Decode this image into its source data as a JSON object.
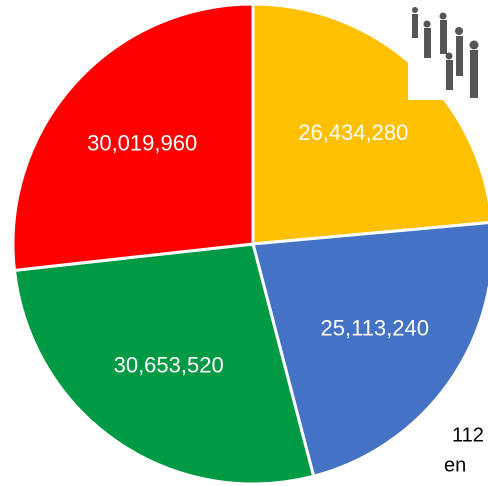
{
  "chart_data": {
    "type": "pie",
    "categories": [
      null,
      null,
      null,
      null
    ],
    "values": [
      26434280,
      25113240,
      30653520,
      30019960
    ],
    "value_labels": [
      "26,434,280",
      "25,113,240",
      "30,653,520",
      "30,019,960"
    ],
    "colors": [
      "#ffc000",
      "#4472c4",
      "#009a44",
      "#ff0000"
    ],
    "annotations": [
      "112",
      "en"
    ]
  }
}
